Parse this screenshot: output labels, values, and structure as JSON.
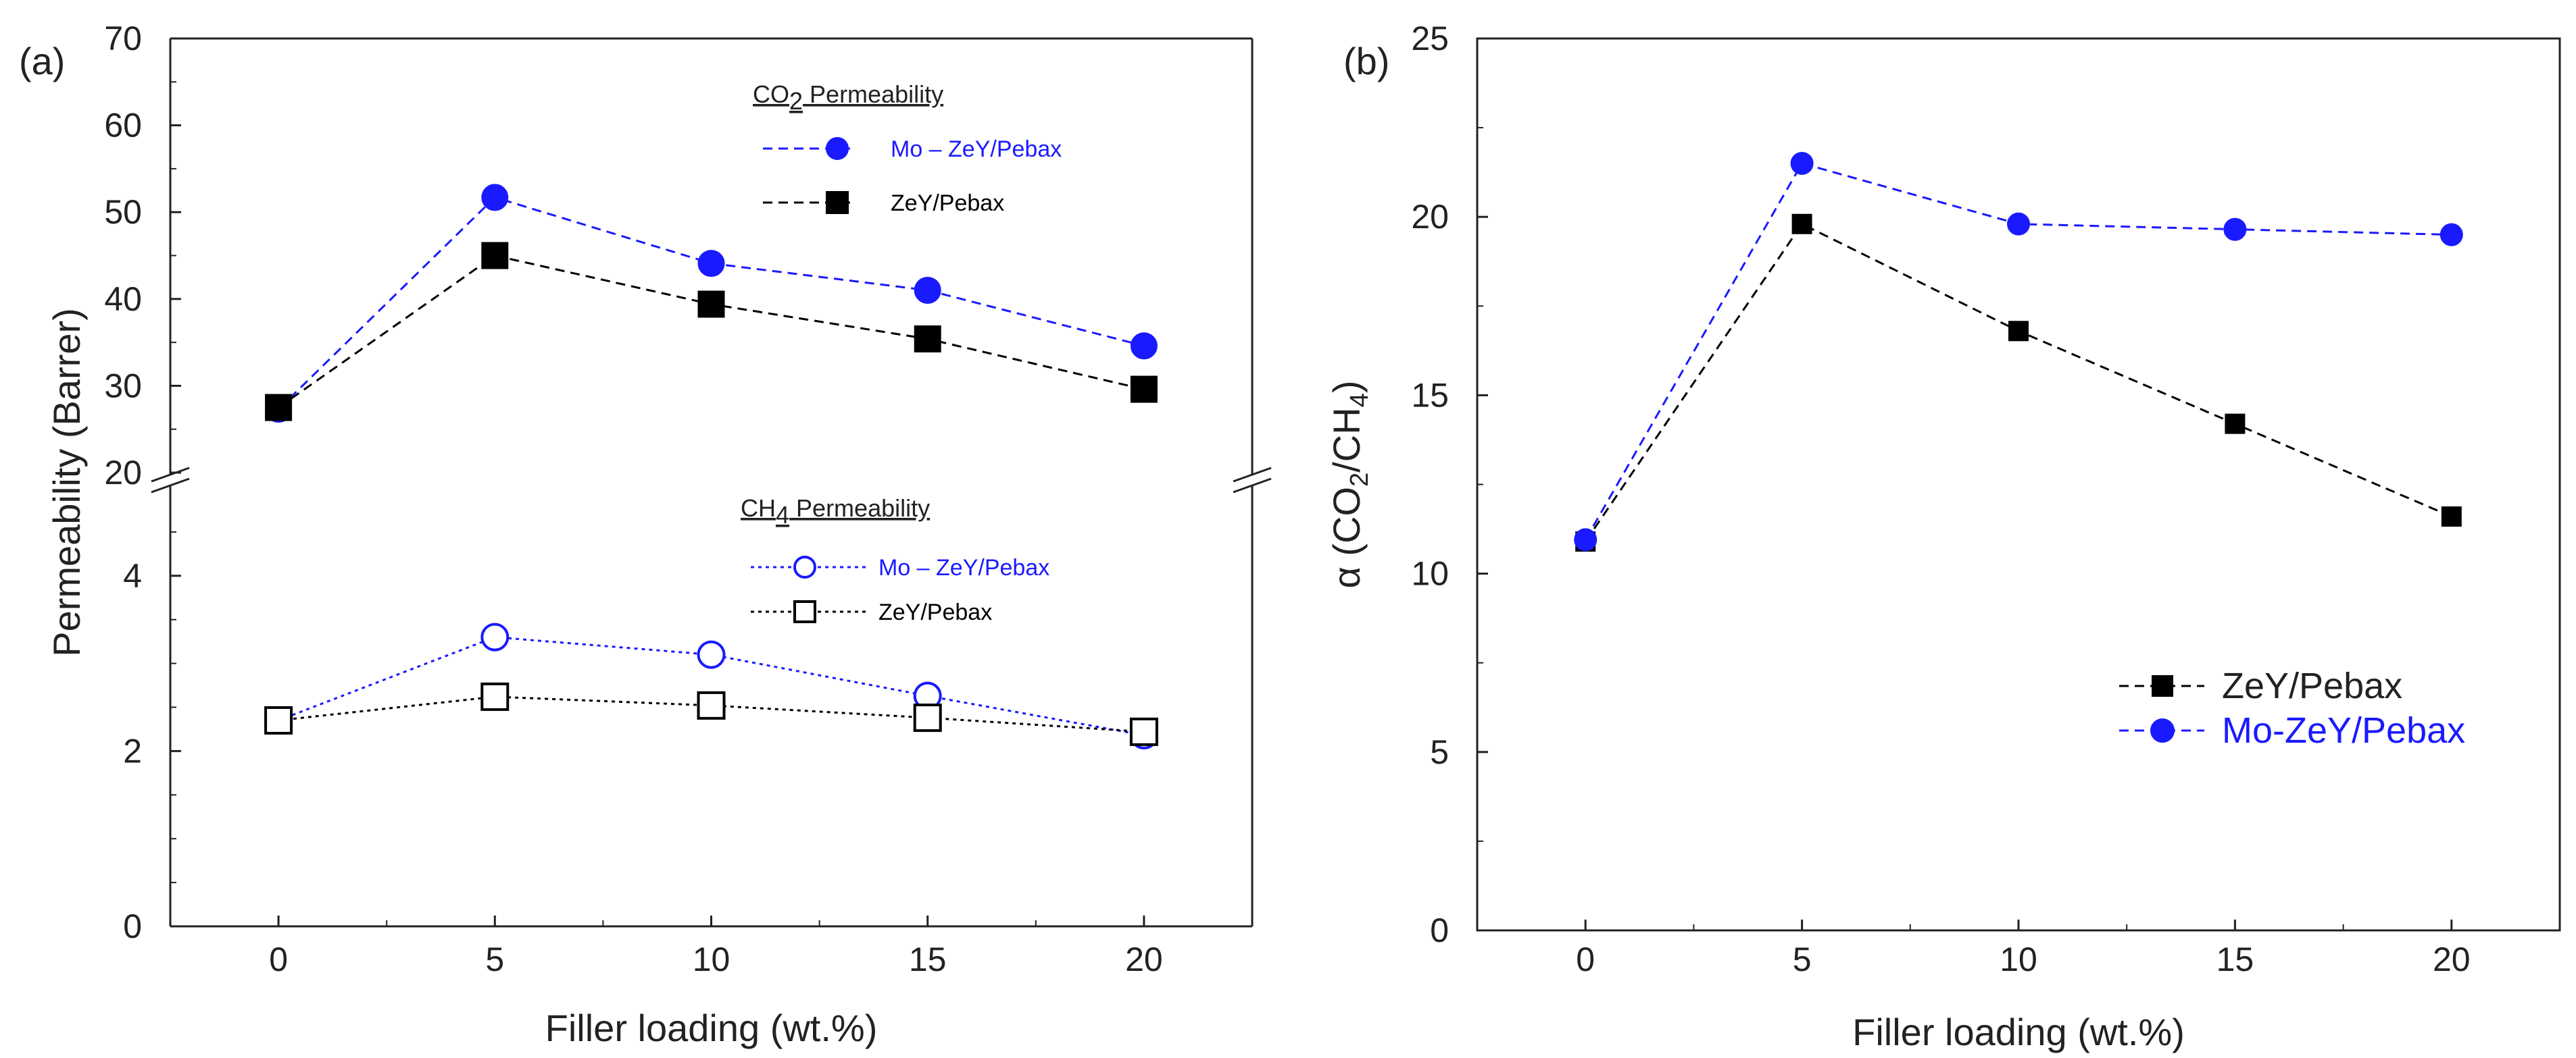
{
  "chart_data": [
    {
      "panel": "(a)",
      "type": "line",
      "xlabel": "Filler loading (wt.%)",
      "ylabel": "Permeability (Barrer)",
      "x": [
        0,
        5,
        10,
        15,
        20
      ],
      "x_ticks": [
        "0",
        "5",
        "10",
        "15",
        "20"
      ],
      "xlim": [
        -2.5,
        22.5
      ],
      "broken_axis": true,
      "upper_segment": {
        "ylim": [
          20,
          70
        ],
        "y_ticks": [
          "20",
          "30",
          "40",
          "50",
          "60",
          "70"
        ]
      },
      "lower_segment": {
        "ylim": [
          0,
          5
        ],
        "y_ticks": [
          "0",
          "2",
          "4"
        ]
      },
      "groups": [
        {
          "heading": "CO2 Permeability",
          "heading_main": "CO",
          "heading_sub": "2",
          "heading_rest": " Permeability",
          "segment": "upper",
          "series": [
            {
              "name": "Mo – ZeY/Pebax",
              "values": [
                27.3,
                51.7,
                44.1,
                41.0,
                34.6
              ],
              "color": "#1a1aff",
              "marker": "circle-filled",
              "dash": "14,9"
            },
            {
              "name": "ZeY/Pebax",
              "values": [
                27.5,
                45.0,
                39.4,
                35.4,
                29.6
              ],
              "color": "#000000",
              "marker": "square-filled",
              "dash": "14,9"
            }
          ]
        },
        {
          "heading": "CH4 Permeability",
          "heading_main": "CH",
          "heading_sub": "4",
          "heading_rest": " Permeability",
          "segment": "lower",
          "series": [
            {
              "name": "Mo – ZeY/Pebax",
              "values": [
                2.35,
                3.3,
                3.1,
                2.63,
                2.18
              ],
              "color": "#1a1aff",
              "marker": "circle-open",
              "dash": "5,6"
            },
            {
              "name": "ZeY/Pebax",
              "values": [
                2.35,
                2.62,
                2.52,
                2.38,
                2.22
              ],
              "color": "#000000",
              "marker": "square-open",
              "dash": "5,6"
            }
          ]
        }
      ]
    },
    {
      "panel": "(b)",
      "type": "line",
      "xlabel": "Filler loading (wt.%)",
      "ylabel": "α (CO2/CH4)",
      "ylabel_parts": {
        "alpha": "α",
        "open": " (CO",
        "sub1": "2",
        "mid": "/CH",
        "sub2": "4",
        "close": ")"
      },
      "x": [
        0,
        5,
        10,
        15,
        20
      ],
      "x_ticks": [
        "0",
        "5",
        "10",
        "15",
        "20"
      ],
      "xlim": [
        -2.5,
        22.5
      ],
      "ylim": [
        0,
        25
      ],
      "y_ticks": [
        "0",
        "5",
        "10",
        "15",
        "20",
        "25"
      ],
      "legend_position": "bottom-right",
      "series": [
        {
          "name": "ZeY/Pebax",
          "values": [
            10.9,
            19.8,
            16.8,
            14.2,
            11.6
          ],
          "color": "#000000",
          "marker": "square-filled",
          "dash": "14,9"
        },
        {
          "name": "Mo-ZeY/Pebax",
          "values": [
            10.95,
            21.5,
            19.8,
            19.65,
            19.5
          ],
          "color": "#1a1aff",
          "marker": "circle-filled",
          "dash": "14,9"
        }
      ]
    }
  ]
}
